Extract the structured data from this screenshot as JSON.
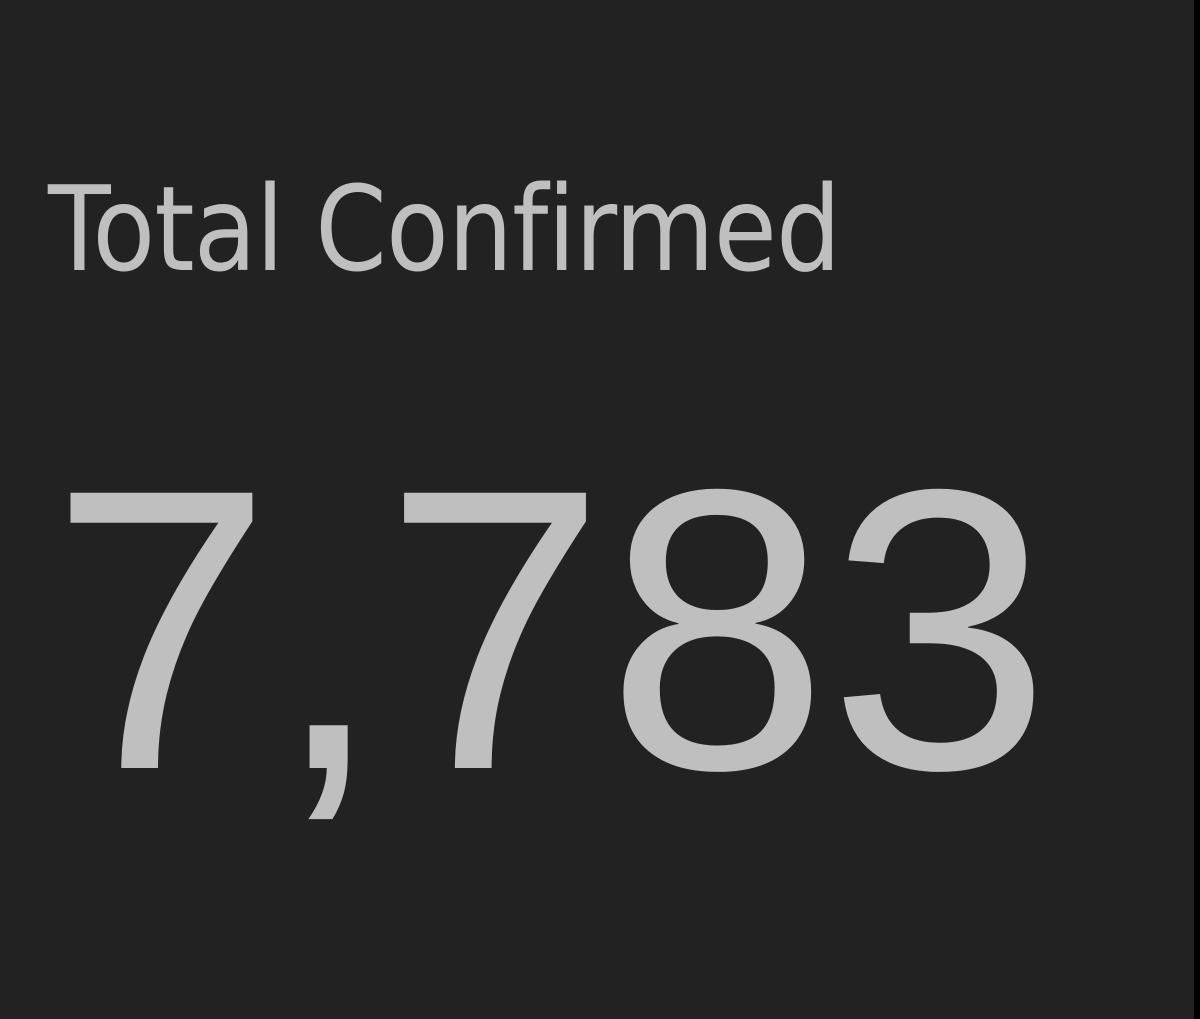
{
  "indicator": {
    "title": "Total Confirmed",
    "value": "7,783",
    "background_color": "#222222",
    "text_color": "#bfbfbf"
  }
}
